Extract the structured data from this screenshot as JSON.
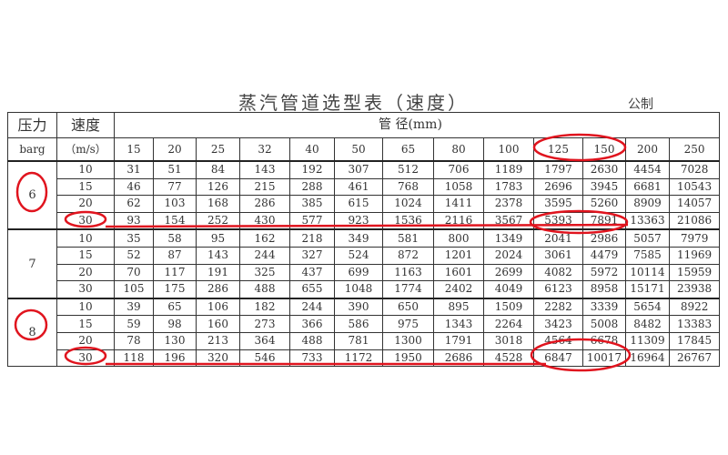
{
  "title": "蒸汽管道选型表（速度）",
  "unit_system": "公制",
  "header": {
    "pressure": "压力",
    "pressure_unit": "barg",
    "velocity": "速度",
    "velocity_unit": "（m/s）",
    "diameter": "管  径(mm)",
    "sizes": [
      "15",
      "20",
      "25",
      "32",
      "40",
      "50",
      "65",
      "80",
      "100",
      "125",
      "150",
      "200",
      "250"
    ]
  },
  "groups": [
    {
      "pressure": "6",
      "rows": [
        {
          "velocity": "10",
          "values": [
            "31",
            "51",
            "84",
            "143",
            "192",
            "307",
            "512",
            "706",
            "1189",
            "1797",
            "2630",
            "4454",
            "7028"
          ]
        },
        {
          "velocity": "15",
          "values": [
            "46",
            "77",
            "126",
            "215",
            "288",
            "461",
            "768",
            "1058",
            "1783",
            "2696",
            "3945",
            "6681",
            "10543"
          ]
        },
        {
          "velocity": "20",
          "values": [
            "62",
            "103",
            "168",
            "286",
            "385",
            "615",
            "1024",
            "1411",
            "2378",
            "3595",
            "5260",
            "8909",
            "14057"
          ]
        },
        {
          "velocity": "30",
          "values": [
            "93",
            "154",
            "252",
            "430",
            "577",
            "923",
            "1536",
            "2116",
            "3567",
            "5393",
            "7891",
            "13363",
            "21086"
          ]
        }
      ]
    },
    {
      "pressure": "7",
      "rows": [
        {
          "velocity": "10",
          "values": [
            "35",
            "58",
            "95",
            "162",
            "218",
            "349",
            "581",
            "800",
            "1349",
            "2041",
            "2986",
            "5057",
            "7979"
          ]
        },
        {
          "velocity": "15",
          "values": [
            "52",
            "87",
            "143",
            "244",
            "327",
            "524",
            "872",
            "1201",
            "2024",
            "3061",
            "4479",
            "7585",
            "11969"
          ]
        },
        {
          "velocity": "20",
          "values": [
            "70",
            "117",
            "191",
            "325",
            "437",
            "699",
            "1163",
            "1601",
            "2699",
            "4082",
            "5972",
            "10114",
            "15959"
          ]
        },
        {
          "velocity": "30",
          "values": [
            "105",
            "175",
            "286",
            "488",
            "655",
            "1048",
            "1774",
            "2402",
            "4049",
            "6123",
            "8958",
            "15171",
            "23938"
          ]
        }
      ]
    },
    {
      "pressure": "8",
      "rows": [
        {
          "velocity": "10",
          "values": [
            "39",
            "65",
            "106",
            "182",
            "244",
            "390",
            "650",
            "895",
            "1509",
            "2282",
            "3339",
            "5654",
            "8922"
          ]
        },
        {
          "velocity": "15",
          "values": [
            "59",
            "98",
            "160",
            "273",
            "366",
            "586",
            "975",
            "1343",
            "2264",
            "3423",
            "5008",
            "8482",
            "13383"
          ]
        },
        {
          "velocity": "20",
          "values": [
            "78",
            "130",
            "213",
            "364",
            "488",
            "781",
            "1300",
            "1791",
            "3018",
            "4564",
            "6678",
            "11309",
            "17845"
          ]
        },
        {
          "velocity": "30",
          "values": [
            "118",
            "196",
            "320",
            "546",
            "733",
            "1172",
            "1950",
            "2686",
            "4528",
            "6847",
            "10017",
            "16964",
            "26767"
          ]
        }
      ]
    }
  ],
  "annotation_color": "#e0141e"
}
